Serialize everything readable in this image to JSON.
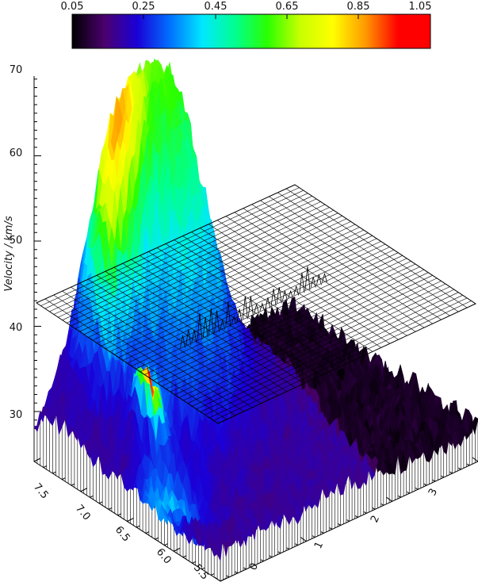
{
  "chart_data": {
    "type": "surface-3d",
    "colorbar": {
      "ticks": [
        "0.05",
        "0.25",
        "0.45",
        "0.65",
        "0.85",
        "1.05"
      ],
      "range": [
        0.05,
        1.05
      ],
      "colormap": [
        "#000000",
        "#4b006e",
        "#1a00d8",
        "#0070ff",
        "#00e8ff",
        "#00ff90",
        "#2bff00",
        "#c8ff00",
        "#ffff00",
        "#ff9a00",
        "#ff0000",
        "#ff0000"
      ]
    },
    "z_axis": {
      "label": "Velocity / km/s",
      "range": [
        30,
        70
      ],
      "ticks": [
        "30",
        "40",
        "50",
        "60",
        "70"
      ]
    },
    "y_axis": {
      "range": [
        5.5,
        7.5
      ],
      "ticks": [
        "5.5",
        "6.0",
        "6.5",
        "7.0",
        "7.5"
      ]
    },
    "x_axis": {
      "range": [
        0,
        3
      ],
      "ticks": [
        "0",
        "1",
        "2",
        "3"
      ]
    },
    "reference_plane": {
      "velocity": 42
    },
    "surface_features": [
      {
        "description": "main peak",
        "velocity": 67,
        "value": 0.6
      },
      {
        "description": "secondary peak",
        "velocity": 50,
        "value": 0.75
      },
      {
        "description": "hot spot",
        "velocity": 36,
        "value": 1.0
      }
    ]
  }
}
